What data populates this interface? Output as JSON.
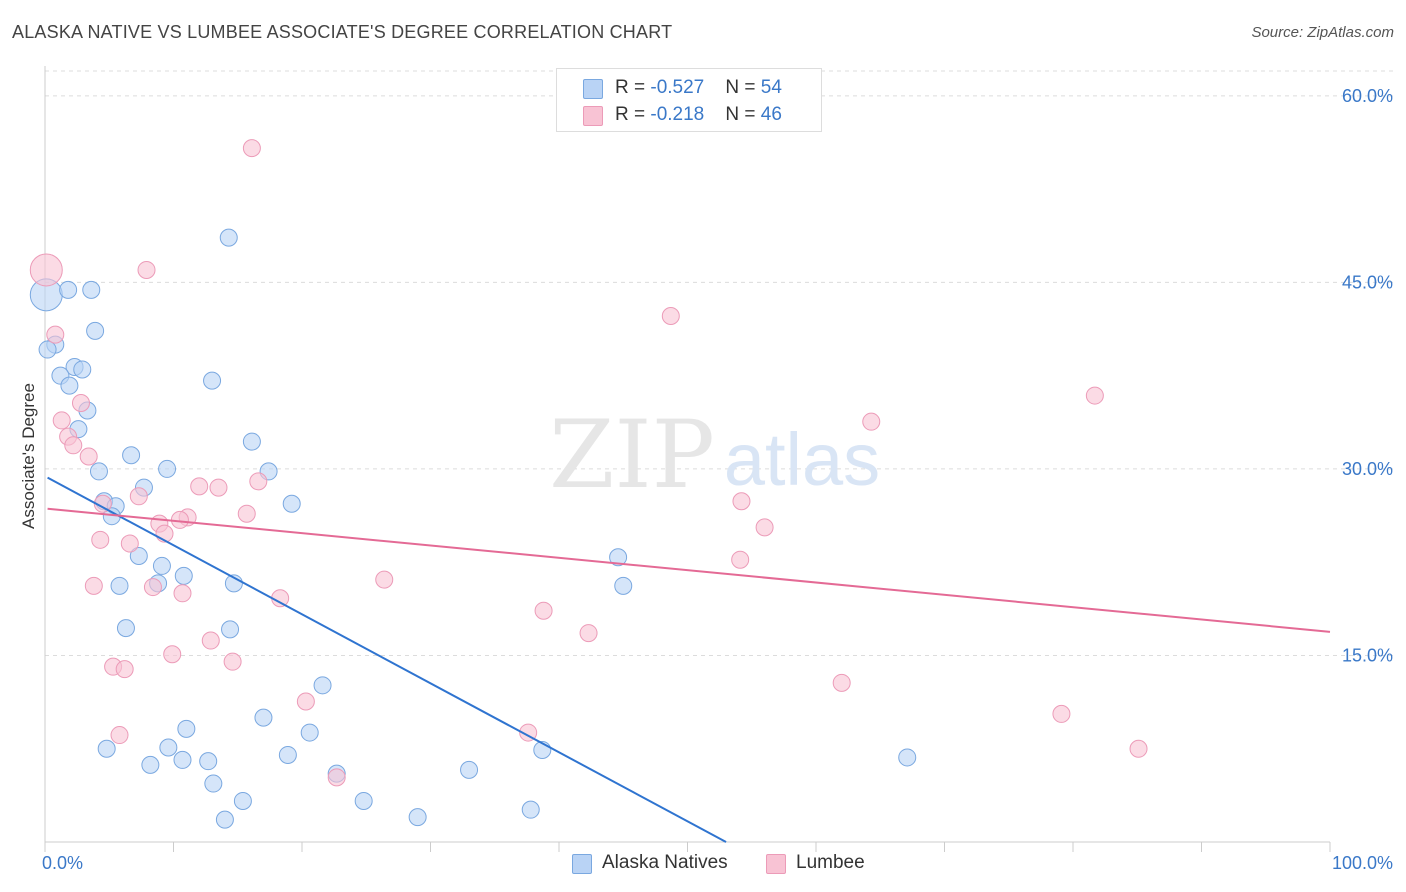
{
  "header": {
    "title": "ALASKA NATIVE VS LUMBEE ASSOCIATE'S DEGREE CORRELATION CHART",
    "source": "Source: ZipAtlas.com"
  },
  "watermark": {
    "zip": "ZIP",
    "atlas": "atlas"
  },
  "legend_top": {
    "rows": [
      {
        "r_label": "R = ",
        "r_value": "-0.527",
        "n_label": "N = ",
        "n_value": "54"
      },
      {
        "r_label": "R = ",
        "r_value": " -0.218",
        "n_label": "N = ",
        "n_value": "46"
      }
    ]
  },
  "bottom_legend": [
    "Alaska Natives",
    "Lumbee"
  ],
  "colors": {
    "blue_fill": "#b9d3f5",
    "blue_stroke": "#7aa8e0",
    "blue_line": "#2f74d0",
    "pink_fill": "#f8c3d4",
    "pink_stroke": "#ec9bb8",
    "pink_line": "#e46a95",
    "tick_label": "#3a78c8",
    "grid": "#dcdcdc",
    "axis": "#cccccc"
  },
  "chart_data": {
    "type": "scatter",
    "title": "ALASKA NATIVE VS LUMBEE ASSOCIATE'S DEGREE CORRELATION CHART",
    "xlabel": "",
    "ylabel": "Associate's Degree",
    "xlim": [
      0,
      100
    ],
    "ylim": [
      0,
      62
    ],
    "x_tick_labels": [
      {
        "value": 0,
        "label": "0.0%"
      },
      {
        "value": 100,
        "label": "100.0%"
      }
    ],
    "y_tick_labels": [
      {
        "value": 15,
        "label": "15.0%"
      },
      {
        "value": 30,
        "label": "30.0%"
      },
      {
        "value": 45,
        "label": "45.0%"
      },
      {
        "value": 60,
        "label": "60.0%"
      }
    ],
    "grid": true,
    "legend_position": "bottom-center",
    "series": [
      {
        "name": "Alaska Natives",
        "color": "#b9d3f5",
        "r": -0.527,
        "n": 54,
        "trend": [
          [
            0.2,
            29.3
          ],
          [
            53,
            0.0
          ]
        ],
        "points": [
          [
            0.1,
            44.0
          ],
          [
            1.8,
            44.4
          ],
          [
            3.6,
            44.4
          ],
          [
            0.8,
            40.0
          ],
          [
            3.9,
            41.1
          ],
          [
            2.3,
            38.2
          ],
          [
            2.9,
            38.0
          ],
          [
            1.2,
            37.5
          ],
          [
            1.9,
            36.7
          ],
          [
            3.3,
            34.7
          ],
          [
            2.6,
            33.2
          ],
          [
            14.3,
            48.6
          ],
          [
            13.0,
            37.1
          ],
          [
            16.1,
            32.2
          ],
          [
            6.7,
            31.1
          ],
          [
            4.2,
            29.8
          ],
          [
            9.5,
            30.0
          ],
          [
            17.4,
            29.8
          ],
          [
            7.7,
            28.5
          ],
          [
            4.6,
            27.4
          ],
          [
            5.5,
            27.0
          ],
          [
            5.2,
            26.2
          ],
          [
            19.2,
            27.2
          ],
          [
            7.3,
            23.0
          ],
          [
            9.1,
            22.2
          ],
          [
            8.8,
            20.8
          ],
          [
            10.8,
            21.4
          ],
          [
            5.8,
            20.6
          ],
          [
            14.7,
            20.8
          ],
          [
            6.3,
            17.2
          ],
          [
            14.4,
            17.1
          ],
          [
            21.6,
            12.6
          ],
          [
            17.0,
            10.0
          ],
          [
            11.0,
            9.1
          ],
          [
            20.6,
            8.8
          ],
          [
            4.8,
            7.5
          ],
          [
            9.6,
            7.6
          ],
          [
            8.2,
            6.2
          ],
          [
            10.7,
            6.6
          ],
          [
            12.7,
            6.5
          ],
          [
            18.9,
            7.0
          ],
          [
            22.7,
            5.5
          ],
          [
            13.1,
            4.7
          ],
          [
            15.4,
            3.3
          ],
          [
            24.8,
            3.3
          ],
          [
            14.0,
            1.8
          ],
          [
            29.0,
            2.0
          ],
          [
            33.0,
            5.8
          ],
          [
            37.8,
            2.6
          ],
          [
            44.6,
            22.9
          ],
          [
            45.0,
            20.6
          ],
          [
            38.7,
            7.4
          ],
          [
            67.1,
            6.8
          ],
          [
            0.2,
            39.6
          ]
        ]
      },
      {
        "name": "Lumbee",
        "color": "#f8c3d4",
        "r": -0.218,
        "n": 46,
        "trend": [
          [
            0.2,
            26.8
          ],
          [
            100,
            16.9
          ]
        ],
        "points": [
          [
            0.1,
            46.0
          ],
          [
            7.9,
            46.0
          ],
          [
            16.1,
            55.8
          ],
          [
            48.7,
            42.3
          ],
          [
            0.8,
            40.8
          ],
          [
            81.7,
            35.9
          ],
          [
            2.8,
            35.3
          ],
          [
            1.3,
            33.9
          ],
          [
            64.3,
            33.8
          ],
          [
            1.8,
            32.6
          ],
          [
            2.2,
            31.9
          ],
          [
            3.4,
            31.0
          ],
          [
            12.0,
            28.6
          ],
          [
            13.5,
            28.5
          ],
          [
            16.6,
            29.0
          ],
          [
            7.3,
            27.8
          ],
          [
            4.5,
            27.2
          ],
          [
            54.2,
            27.4
          ],
          [
            11.1,
            26.1
          ],
          [
            15.7,
            26.4
          ],
          [
            8.9,
            25.6
          ],
          [
            9.3,
            24.8
          ],
          [
            4.3,
            24.3
          ],
          [
            56.0,
            25.3
          ],
          [
            6.6,
            24.0
          ],
          [
            10.5,
            25.9
          ],
          [
            54.1,
            22.7
          ],
          [
            26.4,
            21.1
          ],
          [
            3.8,
            20.6
          ],
          [
            8.4,
            20.5
          ],
          [
            10.7,
            20.0
          ],
          [
            18.3,
            19.6
          ],
          [
            38.8,
            18.6
          ],
          [
            42.3,
            16.8
          ],
          [
            12.9,
            16.2
          ],
          [
            9.9,
            15.1
          ],
          [
            14.6,
            14.5
          ],
          [
            5.3,
            14.1
          ],
          [
            6.2,
            13.9
          ],
          [
            62.0,
            12.8
          ],
          [
            20.3,
            11.3
          ],
          [
            79.1,
            10.3
          ],
          [
            5.8,
            8.6
          ],
          [
            37.6,
            8.8
          ],
          [
            85.1,
            7.5
          ],
          [
            22.7,
            5.2
          ]
        ]
      }
    ]
  }
}
